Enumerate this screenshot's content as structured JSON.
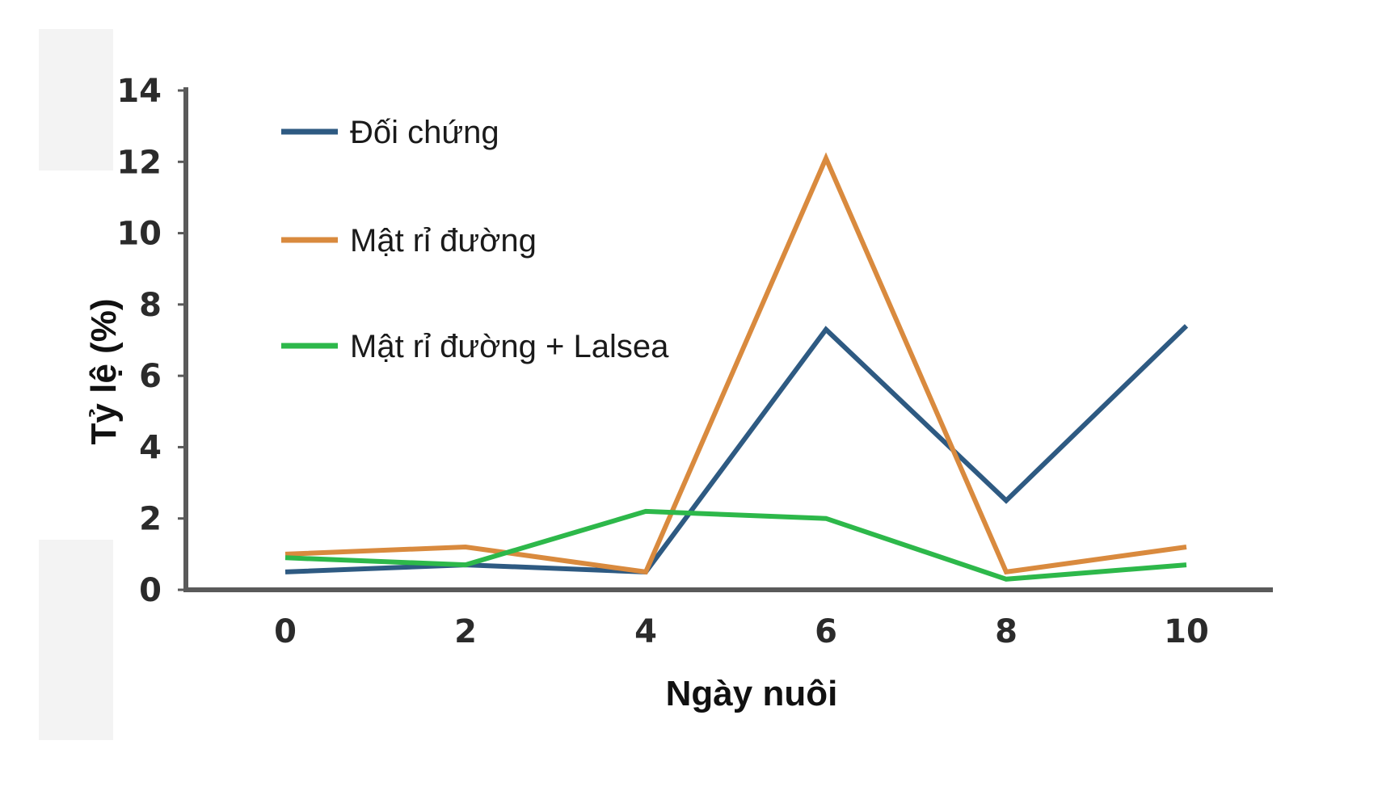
{
  "chart_data": {
    "type": "line",
    "xlabel": "Ngày nuôi",
    "ylabel": "Tỷ lệ (%)",
    "x": [
      0,
      2,
      4,
      6,
      8,
      10
    ],
    "xlim": [
      -2,
      12
    ],
    "ylim": [
      0,
      14
    ],
    "yticks": [
      0,
      2,
      4,
      6,
      8,
      10,
      12,
      14
    ],
    "xticks": [
      0,
      2,
      4,
      6,
      8,
      10
    ],
    "grid": false,
    "legend_position": "top-left",
    "series": [
      {
        "name": "Đối chứng",
        "color": "#2e5a82",
        "values": [
          0.5,
          0.7,
          0.5,
          7.3,
          2.5,
          7.4
        ]
      },
      {
        "name": "Mật rỉ đường",
        "color": "#d98a3e",
        "values": [
          1.0,
          1.2,
          0.5,
          12.1,
          0.5,
          1.2
        ]
      },
      {
        "name": "Mật rỉ đường + Lalsea",
        "color": "#2db84a",
        "values": [
          0.9,
          0.7,
          2.2,
          2.0,
          0.3,
          0.7
        ]
      }
    ]
  }
}
